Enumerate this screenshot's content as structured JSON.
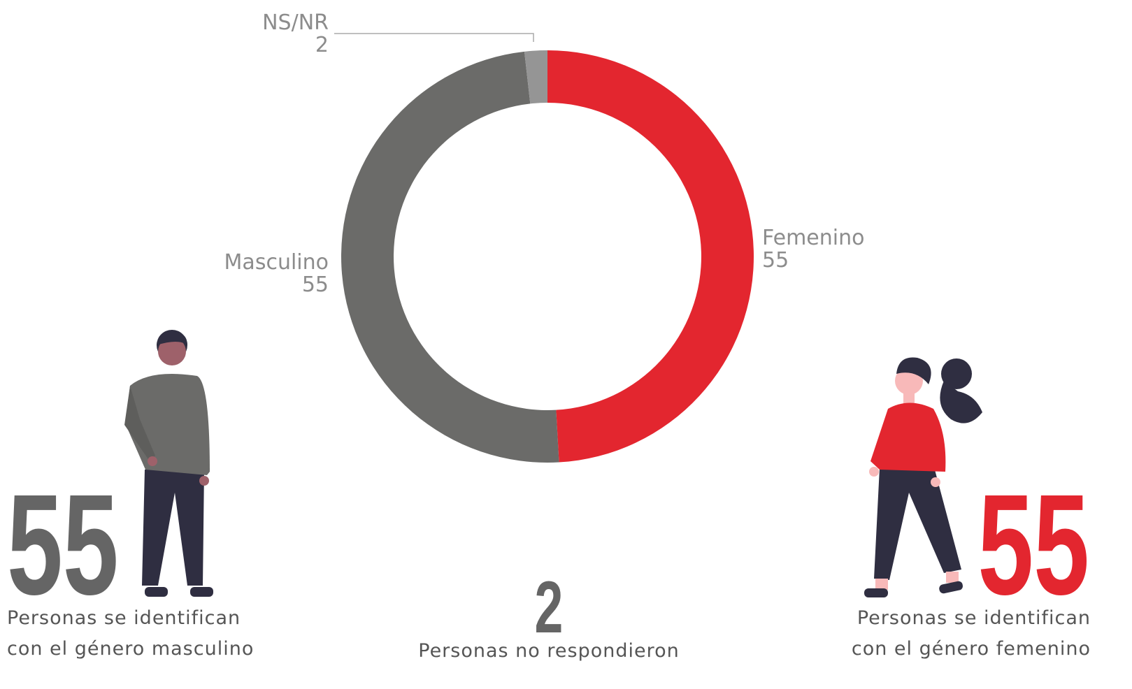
{
  "chart_data": {
    "type": "donut",
    "categories": [
      "Femenino",
      "Masculino",
      "NS/NR"
    ],
    "values": [
      55,
      55,
      2
    ],
    "colors": [
      "#e3262f",
      "#6b6b69",
      "#959595"
    ]
  },
  "stats": [
    {
      "value": 55,
      "caption": [
        "Personas se identifican",
        "con el género masculino"
      ],
      "color": "#656565"
    },
    {
      "value": 2,
      "caption": [
        "Personas no respondieron"
      ],
      "color": "#656565"
    },
    {
      "value": 55,
      "caption": [
        "Personas se identifican",
        "con el género femenino"
      ],
      "color": "#e3262f"
    }
  ]
}
